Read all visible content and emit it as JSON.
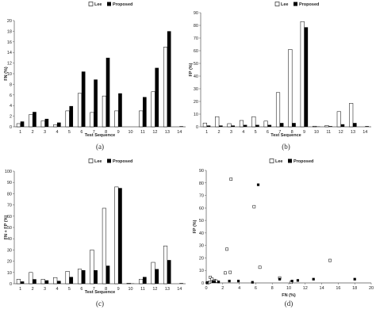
{
  "chart_data": [
    {
      "type": "bar",
      "caption": "(a)",
      "legend": [
        "Lee",
        "Proposed"
      ],
      "legend_position": "top",
      "xlabel": "Test Sequence",
      "ylabel": "FN (%)",
      "ylim": [
        0,
        20
      ],
      "yticks": [
        0,
        2,
        4,
        6,
        8,
        10,
        12,
        14,
        16,
        18,
        20
      ],
      "grid": false,
      "categories": [
        "1",
        "2",
        "3",
        "4",
        "5",
        "6",
        "7",
        "8",
        "9",
        "10",
        "11",
        "12",
        "13",
        "14"
      ],
      "series": [
        {
          "name": "Lee",
          "values": [
            0.6,
            2.3,
            1.1,
            0.4,
            3.0,
            6.3,
            2.7,
            5.8,
            3.0,
            0.0,
            3.0,
            6.6,
            15.0,
            0.0
          ]
        },
        {
          "name": "Proposed",
          "values": [
            1.0,
            2.8,
            1.5,
            0.8,
            3.9,
            10.4,
            8.9,
            13.0,
            6.3,
            0.0,
            5.6,
            11.1,
            18.0,
            0.1
          ]
        }
      ]
    },
    {
      "type": "bar",
      "caption": "(b)",
      "legend": [
        "Lee",
        "Proposed"
      ],
      "legend_position": "top",
      "xlabel": "Test Sequence",
      "ylabel": "FP (%)",
      "ylim": [
        0,
        90
      ],
      "yticks": [
        0,
        10,
        20,
        30,
        40,
        50,
        60,
        70,
        80,
        90
      ],
      "grid": false,
      "categories": [
        "1",
        "2",
        "3",
        "4",
        "5",
        "6",
        "7",
        "8",
        "9",
        "10",
        "11",
        "12",
        "13",
        "14"
      ],
      "series": [
        {
          "name": "Lee",
          "values": [
            3.0,
            8.0,
            2.5,
            5.0,
            8.0,
            4.5,
            27.0,
            61.0,
            83.0,
            0.5,
            1.0,
            12.0,
            18.5,
            0.0
          ]
        },
        {
          "name": "Proposed",
          "values": [
            1.0,
            1.0,
            1.0,
            1.5,
            1.5,
            1.5,
            3.0,
            3.0,
            78.5,
            0.2,
            0.5,
            2.0,
            3.0,
            0.5
          ]
        }
      ]
    },
    {
      "type": "bar",
      "caption": "(c)",
      "legend": [
        "Lee",
        "Proposed"
      ],
      "legend_position": "top",
      "xlabel": "Test Sequence",
      "ylabel": "FN + FP (%)",
      "ylim": [
        0,
        100
      ],
      "yticks": [
        0,
        10,
        20,
        30,
        40,
        50,
        60,
        70,
        80,
        90,
        100
      ],
      "grid": false,
      "categories": [
        "1",
        "2",
        "3",
        "4",
        "5",
        "6",
        "7",
        "8",
        "9",
        "10",
        "11",
        "12",
        "13",
        "14"
      ],
      "series": [
        {
          "name": "Lee",
          "values": [
            4.0,
            10.0,
            4.0,
            5.5,
            11.0,
            13.0,
            30.0,
            67.0,
            86.0,
            0.5,
            4.0,
            19.0,
            33.5,
            0.0
          ]
        },
        {
          "name": "Proposed",
          "values": [
            2.0,
            4.0,
            3.0,
            2.5,
            6.0,
            12.0,
            12.0,
            16.0,
            85.0,
            0.2,
            6.0,
            13.0,
            21.0,
            0.5
          ]
        }
      ]
    },
    {
      "type": "scatter",
      "caption": "(d)",
      "legend": [
        "Lee",
        "Proposed"
      ],
      "legend_position": "top",
      "xlabel": "FN (%)",
      "ylabel": "FP (%)",
      "xlim": [
        0,
        20
      ],
      "ylim": [
        0,
        90
      ],
      "xticks": [
        0,
        2,
        4,
        6,
        8,
        10,
        12,
        14,
        16,
        18,
        20
      ],
      "yticks": [
        0,
        10,
        20,
        30,
        40,
        50,
        60,
        70,
        80,
        90
      ],
      "grid": false,
      "series": [
        {
          "name": "Lee",
          "points": [
            [
              0.5,
              4.5
            ],
            [
              0.7,
              3.0
            ],
            [
              1.0,
              2.0
            ],
            [
              1.2,
              1.5
            ],
            [
              0.4,
              0.5
            ],
            [
              2.3,
              8.0
            ],
            [
              2.5,
              27.0
            ],
            [
              2.9,
              8.5
            ],
            [
              3.0,
              83.0
            ],
            [
              5.8,
              61.0
            ],
            [
              6.5,
              12.5
            ],
            [
              8.9,
              4.0
            ],
            [
              15.0,
              18.0
            ],
            [
              10.3,
              0.5
            ],
            [
              0.2,
              0.0
            ]
          ]
        },
        {
          "name": "Proposed",
          "points": [
            [
              1.0,
              1.0
            ],
            [
              0.8,
              1.0
            ],
            [
              1.5,
              0.8
            ],
            [
              2.8,
              1.5
            ],
            [
              3.9,
              1.5
            ],
            [
              6.3,
              78.5
            ],
            [
              8.9,
              3.0
            ],
            [
              10.4,
              1.5
            ],
            [
              11.1,
              2.0
            ],
            [
              13.0,
              3.0
            ],
            [
              18.0,
              3.0
            ],
            [
              5.6,
              0.5
            ],
            [
              0.1,
              0.3
            ]
          ]
        }
      ]
    }
  ]
}
